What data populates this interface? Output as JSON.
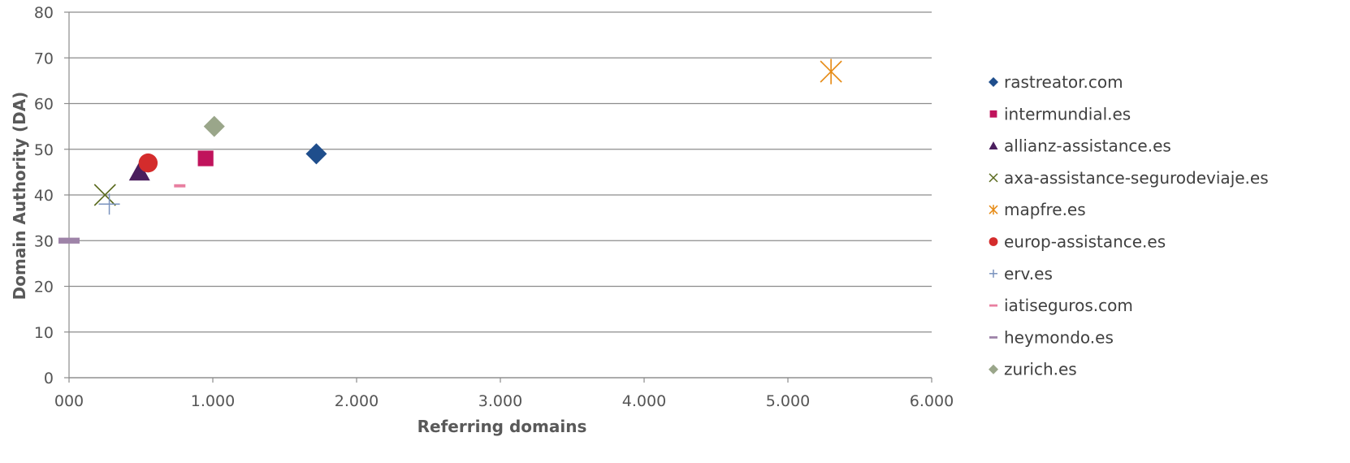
{
  "chart_data": {
    "type": "scatter",
    "title": "",
    "xlabel": "Referring domains",
    "ylabel": "Domain Authority (DA)",
    "xlim": [
      0,
      6000
    ],
    "ylim": [
      0,
      80
    ],
    "x_ticks": [
      "000",
      "1.000",
      "2.000",
      "3.000",
      "4.000",
      "5.000",
      "6.000"
    ],
    "y_ticks": [
      "0",
      "10",
      "20",
      "30",
      "40",
      "50",
      "60",
      "70",
      "80"
    ],
    "grid": "horizontal",
    "legend_position": "right",
    "series": [
      {
        "name": "rastreator.com",
        "marker": "diamond",
        "color": "#1F4E8C",
        "x": 1720,
        "y": 49
      },
      {
        "name": "intermundial.es",
        "marker": "square",
        "color": "#C0135C",
        "x": 950,
        "y": 48
      },
      {
        "name": "allianz-assistance.es",
        "marker": "triangle",
        "color": "#4B1E5E",
        "x": 490,
        "y": 45
      },
      {
        "name": "axa-assistance-segurodeviaje.es",
        "marker": "x",
        "color": "#5A6A1E",
        "x": 250,
        "y": 40
      },
      {
        "name": "mapfre.es",
        "marker": "star",
        "color": "#E68A14",
        "x": 5300,
        "y": 67
      },
      {
        "name": "europ-assistance.es",
        "marker": "circle",
        "color": "#D42C2C",
        "x": 550,
        "y": 47
      },
      {
        "name": "erv.es",
        "marker": "plus",
        "color": "#7A93BE",
        "x": 280,
        "y": 38
      },
      {
        "name": "iatiseguros.com",
        "marker": "dash",
        "color": "#E87FA0",
        "x": 770,
        "y": 42
      },
      {
        "name": "heymondo.es",
        "marker": "dash",
        "color": "#9E83A8",
        "x": 0,
        "y": 30
      },
      {
        "name": "zurich.es",
        "marker": "diamond",
        "color": "#9AA68A",
        "x": 1010,
        "y": 55
      }
    ]
  }
}
